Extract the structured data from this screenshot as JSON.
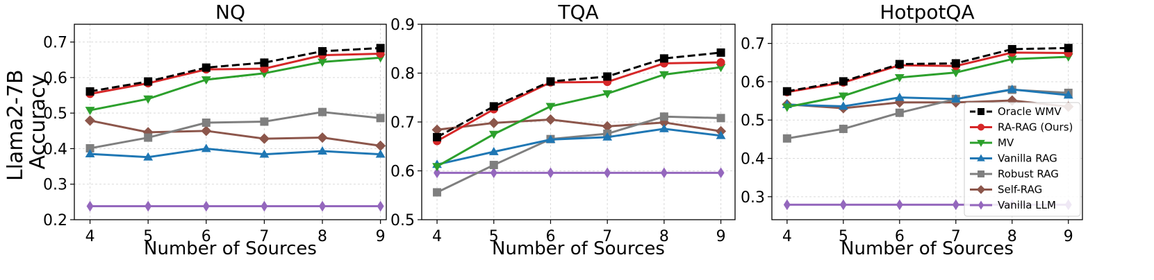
{
  "figure": {
    "ylabel_line1": "Llama2-7B",
    "ylabel_line2": "Accuracy"
  },
  "legend": {
    "placement": "right-middle of third panel",
    "entries": [
      "Oracle WMV",
      "RA-RAG (Ours)",
      "MV",
      "Vanilla RAG",
      "Robust RAG",
      "Self-RAG",
      "Vanilla LLM"
    ]
  },
  "series_styles": [
    {
      "name": "Oracle WMV",
      "color": "#000000",
      "marker": "square",
      "dashed": true
    },
    {
      "name": "RA-RAG (Ours)",
      "color": "#d62728",
      "marker": "circle",
      "dashed": false
    },
    {
      "name": "MV",
      "color": "#2ca02c",
      "marker": "triangle-down",
      "dashed": false
    },
    {
      "name": "Vanilla RAG",
      "color": "#1f77b4",
      "marker": "triangle-up",
      "dashed": false
    },
    {
      "name": "Robust RAG",
      "color": "#7f7f7f",
      "marker": "square",
      "dashed": false
    },
    {
      "name": "Self-RAG",
      "color": "#8c564b",
      "marker": "diamond",
      "dashed": false
    },
    {
      "name": "Vanilla LLM",
      "color": "#9467bd",
      "marker": "thin-diamond",
      "dashed": false
    }
  ],
  "chart_data": [
    {
      "type": "line",
      "title": "NQ",
      "xlabel": "Number of Sources",
      "ylabel": "Llama2-7B Accuracy",
      "x": [
        4,
        5,
        6,
        7,
        8,
        9
      ],
      "xticks": [
        "4",
        "5",
        "6",
        "7",
        "8",
        "9"
      ],
      "xlim": [
        3.73,
        9.1
      ],
      "ylim": [
        0.2,
        0.75
      ],
      "yticks": [
        0.2,
        0.3,
        0.4,
        0.5,
        0.6,
        0.7
      ],
      "ytick_labels": [
        "0.2",
        "0.3",
        "0.4",
        "0.5",
        "0.6",
        "0.7"
      ],
      "grid": true,
      "series": [
        {
          "name": "Oracle WMV",
          "values": [
            0.561,
            0.589,
            0.628,
            0.642,
            0.674,
            0.683
          ]
        },
        {
          "name": "RA-RAG (Ours)",
          "values": [
            0.554,
            0.584,
            0.623,
            0.625,
            0.663,
            0.667
          ]
        },
        {
          "name": "MV",
          "values": [
            0.508,
            0.54,
            0.594,
            0.612,
            0.644,
            0.656
          ]
        },
        {
          "name": "Vanilla RAG",
          "values": [
            0.385,
            0.376,
            0.4,
            0.384,
            0.393,
            0.384
          ]
        },
        {
          "name": "Robust RAG",
          "values": [
            0.401,
            0.431,
            0.473,
            0.476,
            0.503,
            0.486
          ]
        },
        {
          "name": "Self-RAG",
          "values": [
            0.479,
            0.446,
            0.45,
            0.428,
            0.431,
            0.408
          ]
        },
        {
          "name": "Vanilla LLM",
          "values": [
            0.238,
            0.238,
            0.238,
            0.238,
            0.238,
            0.238
          ]
        }
      ]
    },
    {
      "type": "line",
      "title": "TQA",
      "xlabel": "Number of Sources",
      "ylabel": "",
      "x": [
        4,
        5,
        6,
        7,
        8,
        9
      ],
      "xticks": [
        "4",
        "5",
        "6",
        "7",
        "8",
        "9"
      ],
      "xlim": [
        3.73,
        9.25
      ],
      "ylim": [
        0.5,
        0.9
      ],
      "yticks": [
        0.5,
        0.6,
        0.7,
        0.8,
        0.9
      ],
      "ytick_labels": [
        "0.5",
        "0.6",
        "0.7",
        "0.8",
        "0.9"
      ],
      "grid": true,
      "series": [
        {
          "name": "Oracle WMV",
          "values": [
            0.669,
            0.732,
            0.783,
            0.793,
            0.83,
            0.842
          ]
        },
        {
          "name": "RA-RAG (Ours)",
          "values": [
            0.661,
            0.726,
            0.781,
            0.782,
            0.82,
            0.822
          ]
        },
        {
          "name": "MV",
          "values": [
            0.609,
            0.675,
            0.732,
            0.758,
            0.797,
            0.812
          ]
        },
        {
          "name": "Vanilla RAG",
          "values": [
            0.613,
            0.639,
            0.664,
            0.669,
            0.686,
            0.672
          ]
        },
        {
          "name": "Robust RAG",
          "values": [
            0.556,
            0.612,
            0.665,
            0.676,
            0.711,
            0.708
          ]
        },
        {
          "name": "Self-RAG",
          "values": [
            0.684,
            0.698,
            0.705,
            0.691,
            0.699,
            0.681
          ]
        },
        {
          "name": "Vanilla LLM",
          "values": [
            0.596,
            0.596,
            0.596,
            0.596,
            0.596,
            0.596
          ]
        }
      ]
    },
    {
      "type": "line",
      "title": "HotpotQA",
      "xlabel": "Number of Sources",
      "ylabel": "",
      "x": [
        4,
        5,
        6,
        7,
        8,
        9
      ],
      "xticks": [
        "4",
        "5",
        "6",
        "7",
        "8",
        "9"
      ],
      "xlim": [
        3.73,
        9.25
      ],
      "ylim": [
        0.24,
        0.75
      ],
      "yticks": [
        0.3,
        0.4,
        0.5,
        0.6,
        0.7
      ],
      "ytick_labels": [
        "0.3",
        "0.4",
        "0.5",
        "0.6",
        "0.7"
      ],
      "grid": true,
      "series": [
        {
          "name": "Oracle WMV",
          "values": [
            0.575,
            0.601,
            0.646,
            0.648,
            0.685,
            0.688
          ]
        },
        {
          "name": "RA-RAG (Ours)",
          "values": [
            0.573,
            0.598,
            0.643,
            0.641,
            0.676,
            0.675
          ]
        },
        {
          "name": "MV",
          "values": [
            0.534,
            0.563,
            0.611,
            0.624,
            0.659,
            0.665
          ]
        },
        {
          "name": "Vanilla RAG",
          "values": [
            0.54,
            0.536,
            0.559,
            0.555,
            0.58,
            0.565
          ]
        },
        {
          "name": "Robust RAG",
          "values": [
            0.452,
            0.477,
            0.519,
            0.555,
            0.579,
            0.571
          ]
        },
        {
          "name": "Self-RAG",
          "values": [
            0.541,
            0.531,
            0.546,
            0.546,
            0.551,
            0.535
          ]
        },
        {
          "name": "Vanilla LLM",
          "values": [
            0.279,
            0.279,
            0.279,
            0.279,
            0.279,
            0.279
          ]
        }
      ]
    }
  ]
}
